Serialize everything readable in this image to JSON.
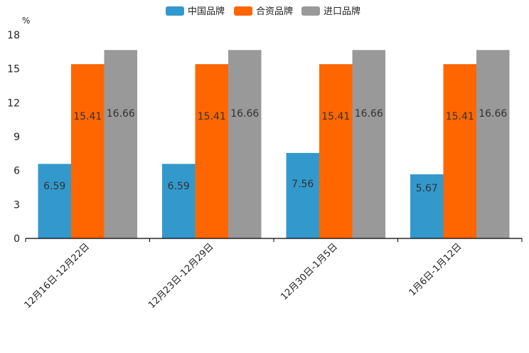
{
  "chart_data": {
    "type": "bar",
    "unit": "%",
    "categories": [
      "12月16日-12月22日",
      "12月23日-12月29日",
      "12月30日-1月5日",
      "1月6日-1月12日"
    ],
    "series": [
      {
        "name": "中国品牌",
        "color": "#3399cc",
        "values": [
          6.59,
          6.59,
          7.56,
          5.67
        ],
        "labels": [
          "6.59",
          "6.59",
          "7.56",
          "5.67"
        ]
      },
      {
        "name": "合资品牌",
        "color": "#ff6600",
        "values": [
          15.41,
          15.41,
          15.41,
          15.41
        ],
        "labels": [
          "15.41",
          "15.41",
          "15.41",
          "15.41"
        ]
      },
      {
        "name": "进口品牌",
        "color": "#999999",
        "values": [
          16.66,
          16.66,
          16.66,
          16.66
        ],
        "labels": [
          "16.66",
          "16.66",
          "16.66",
          "16.66"
        ]
      }
    ],
    "yticks": [
      "0",
      "3",
      "6",
      "9",
      "12",
      "15",
      "18"
    ],
    "ylim": [
      0,
      18
    ],
    "legend_position": "top-center",
    "grid": false
  }
}
